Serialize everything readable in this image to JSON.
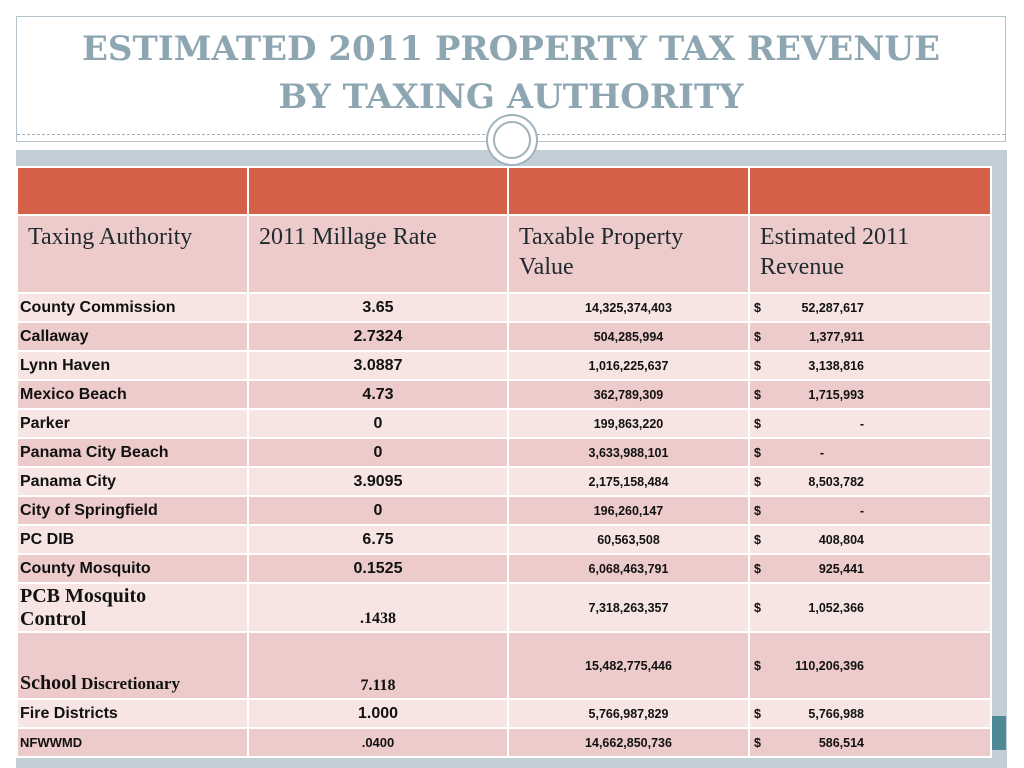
{
  "title_line1": "ESTIMATED 2011 PROPERTY TAX REVENUE",
  "title_line2": "BY TAXING AUTHORITY",
  "headers": [
    "Taxing Authority",
    "2011 Millage Rate",
    "Taxable Property Value",
    "Estimated 2011 Revenue"
  ],
  "rows": [
    {
      "name": "County  Commission",
      "rate": "3.65",
      "value": "14,325,374,403",
      "dollar": "$",
      "revenue": "52,287,617"
    },
    {
      "name": "Callaway",
      "rate": "2.7324",
      "value": "504,285,994",
      "dollar": "$",
      "revenue": "1,377,911"
    },
    {
      "name": "Lynn Haven",
      "rate": "3.0887",
      "value": "1,016,225,637",
      "dollar": "$",
      "revenue": "3,138,816"
    },
    {
      "name": "Mexico Beach",
      "rate": "4.73",
      "value": "362,789,309",
      "dollar": "$",
      "revenue": "1,715,993"
    },
    {
      "name": "Parker",
      "rate": "0",
      "value": "199,863,220",
      "dollar": "$",
      "revenue": "-"
    },
    {
      "name": "Panama City Beach",
      "rate": "0",
      "value": "3,633,988,101",
      "dollar": "$",
      "revenue": "-"
    },
    {
      "name": "Panama City",
      "rate": "3.9095",
      "value": "2,175,158,484",
      "dollar": "$",
      "revenue": "8,503,782"
    },
    {
      "name": "City of Springfield",
      "rate": "0",
      "value": "196,260,147",
      "dollar": "$",
      "revenue": "-"
    },
    {
      "name": "PC DIB",
      "rate": "6.75",
      "value": "60,563,508",
      "dollar": "$",
      "revenue": "408,804"
    },
    {
      "name": "County Mosquito",
      "rate": "0.1525",
      "value": "6,068,463,791",
      "dollar": "$",
      "revenue": "925,441"
    },
    {
      "name_line1": "PCB Mosquito",
      "name_line2": "Control",
      "rate": ".1438",
      "value": "7,318,263,357",
      "dollar": "$",
      "revenue": "1,052,366"
    },
    {
      "name_part1": "School",
      "name_part2": "Discretionary",
      "rate": "7.118",
      "value": "15,482,775,446",
      "dollar": "$",
      "revenue": "110,206,396"
    },
    {
      "name": "Fire Districts",
      "rate": "1.000",
      "value": "5,766,987,829",
      "dollar": "$",
      "revenue": "5,766,988"
    },
    {
      "name": "NFWWMD",
      "rate": ".0400",
      "value": "14,662,850,736",
      "dollar": "$",
      "revenue": "586,514"
    }
  ],
  "colors": {
    "header_red": "#d4604a",
    "row_pink": "#eccbca",
    "row_light": "#f7e5e4",
    "title": "#8ea6b1",
    "accent_teal": "#4f8993"
  }
}
